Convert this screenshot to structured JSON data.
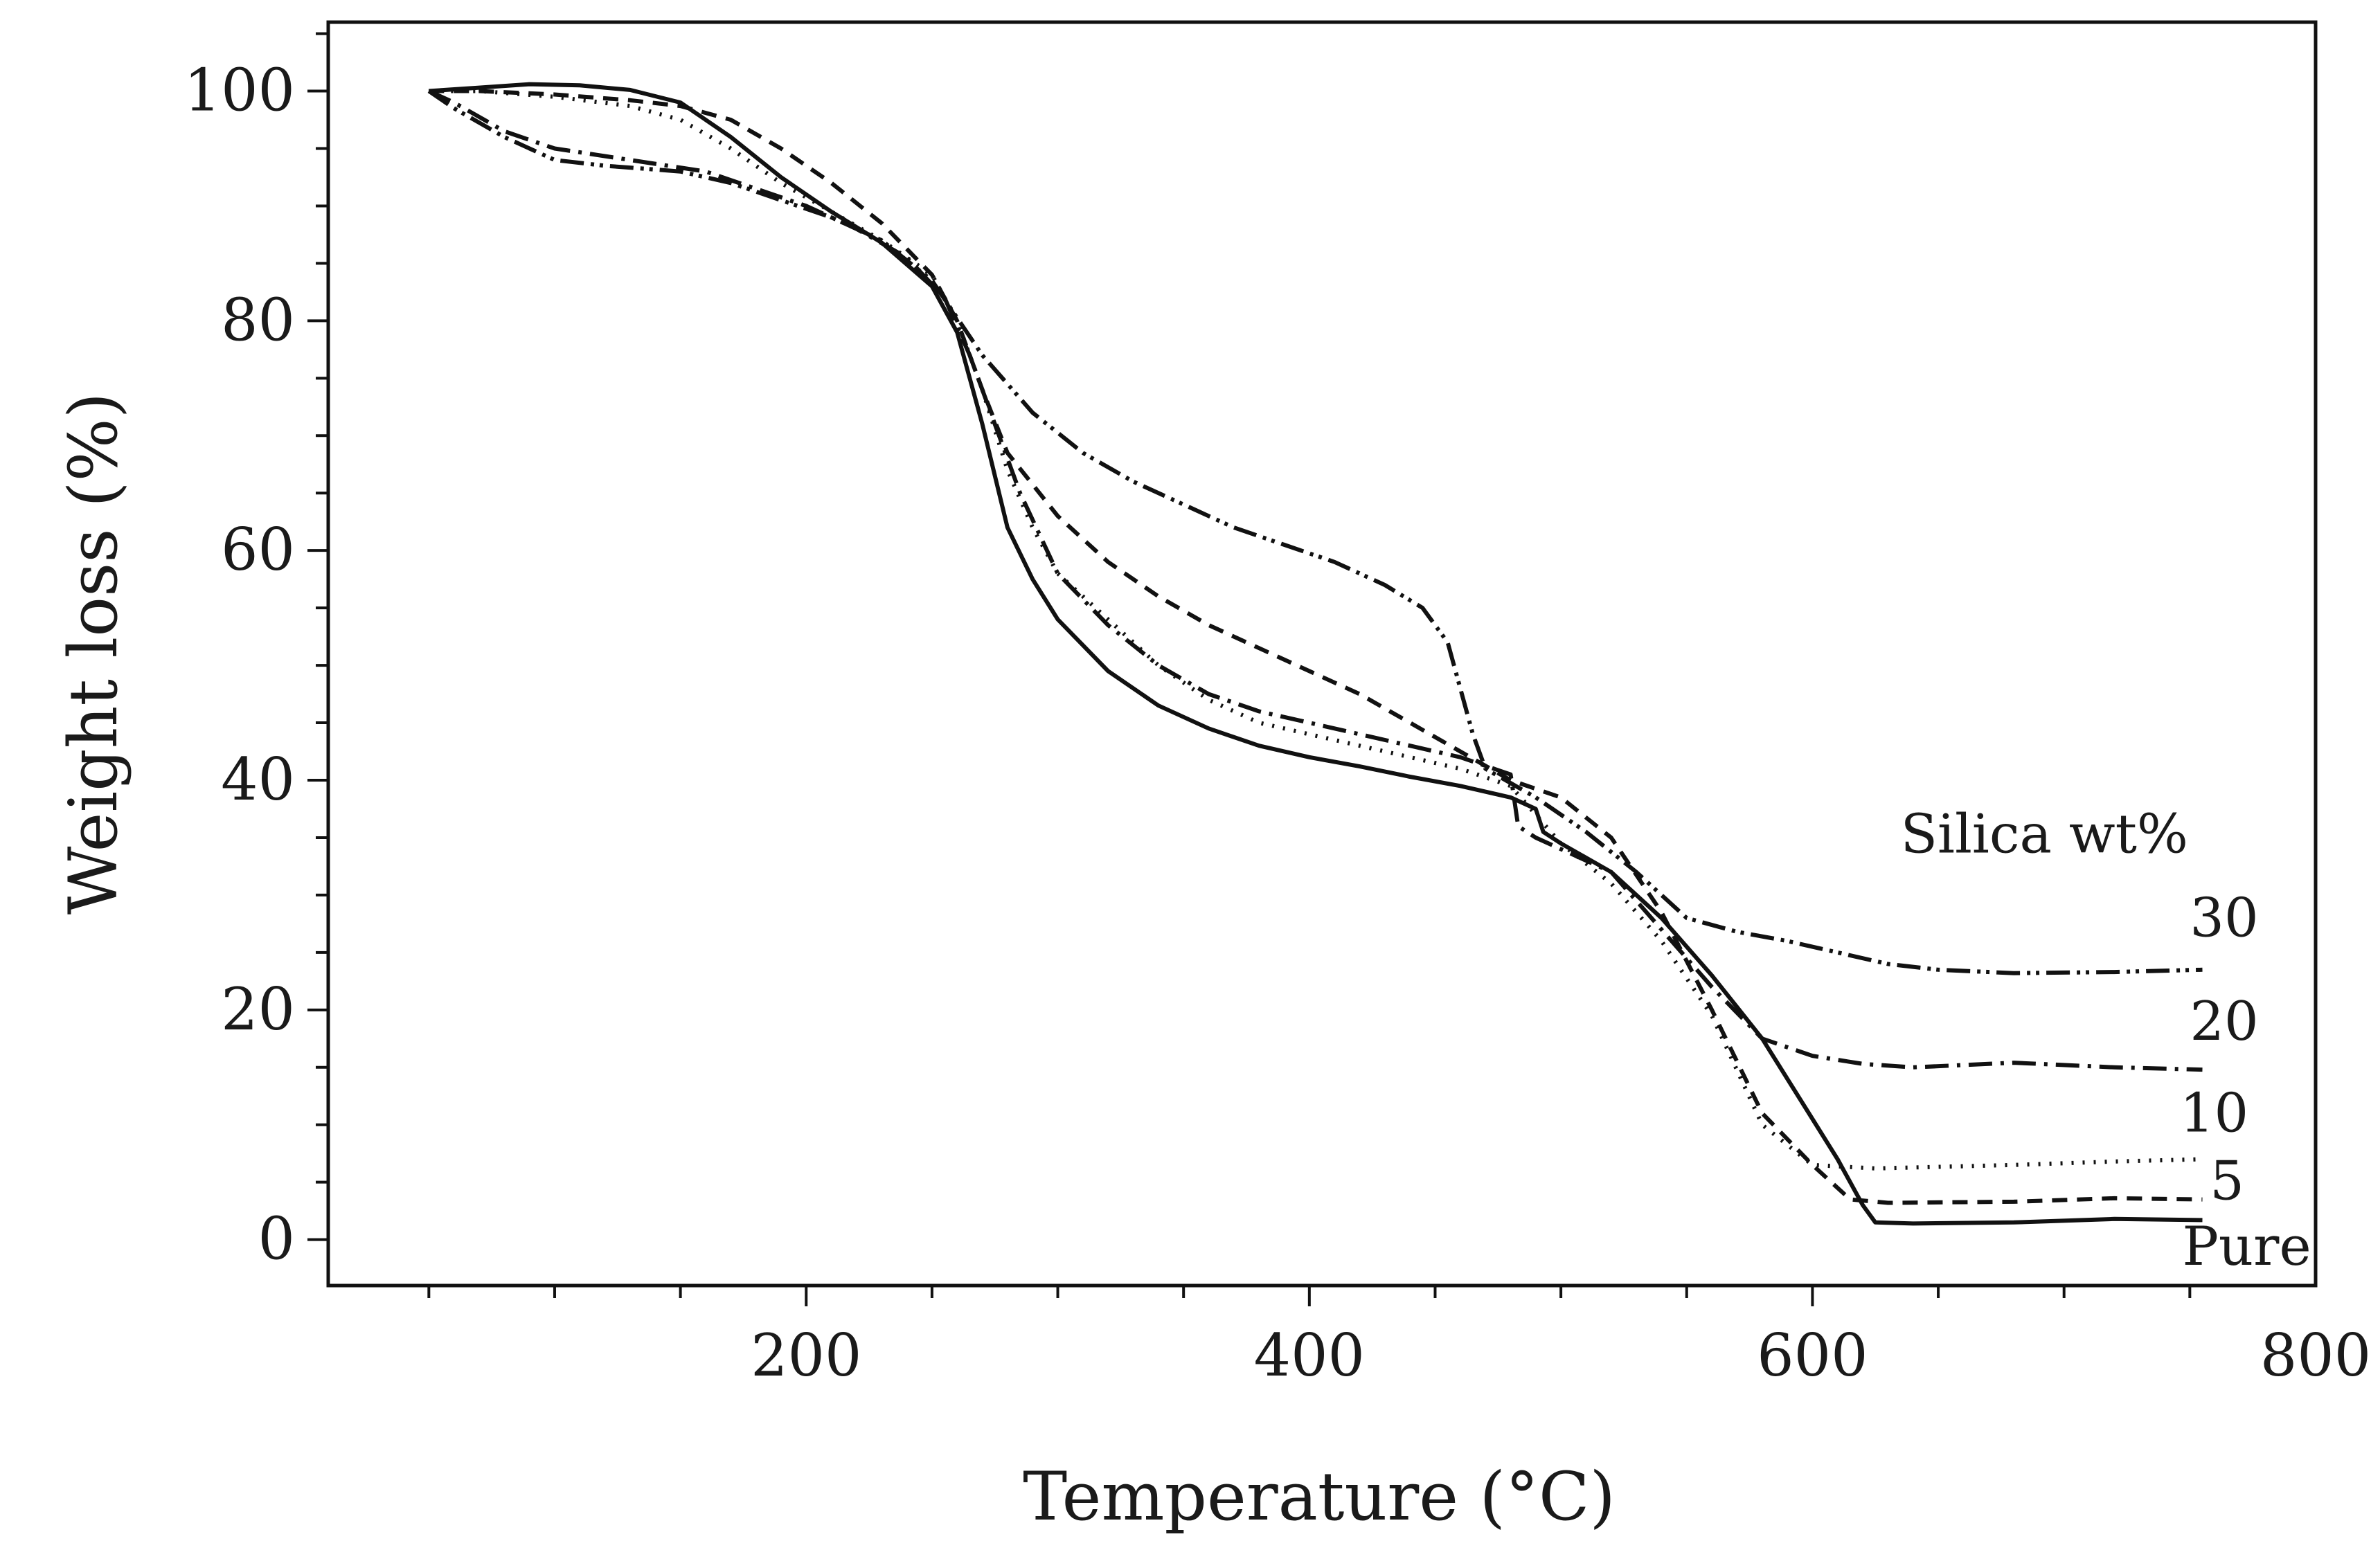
{
  "chart_data": {
    "type": "line",
    "title": "",
    "xlabel": "Temperature (°C)",
    "ylabel": "Weight loss (%)",
    "xlim": [
      10,
      800
    ],
    "ylim": [
      -4,
      106
    ],
    "xticks": [
      200,
      400,
      600,
      800
    ],
    "yticks": [
      0,
      20,
      40,
      60,
      80,
      100
    ],
    "x_minor_step": 50,
    "y_minor_step": 5,
    "grid": false,
    "legend_title": "Silica wt%",
    "series": [
      {
        "name": "Pure",
        "label": "Pure",
        "dash": "solid",
        "points": [
          [
            50,
            100
          ],
          [
            70,
            100.3
          ],
          [
            90,
            100.6
          ],
          [
            110,
            100.5
          ],
          [
            130,
            100.1
          ],
          [
            150,
            99
          ],
          [
            170,
            96
          ],
          [
            190,
            92.5
          ],
          [
            210,
            89.5
          ],
          [
            230,
            86.8
          ],
          [
            250,
            83
          ],
          [
            260,
            79
          ],
          [
            270,
            71
          ],
          [
            280,
            62
          ],
          [
            290,
            57.5
          ],
          [
            300,
            54
          ],
          [
            320,
            49.5
          ],
          [
            340,
            46.5
          ],
          [
            360,
            44.5
          ],
          [
            380,
            43
          ],
          [
            400,
            42
          ],
          [
            420,
            41.2
          ],
          [
            440,
            40.3
          ],
          [
            460,
            39.5
          ],
          [
            480,
            38.5
          ],
          [
            490,
            37.5
          ],
          [
            493,
            35.5
          ],
          [
            500,
            34.5
          ],
          [
            520,
            32
          ],
          [
            540,
            28
          ],
          [
            560,
            23
          ],
          [
            580,
            17.5
          ],
          [
            600,
            10.5
          ],
          [
            610,
            7
          ],
          [
            620,
            3
          ],
          [
            625,
            1.5
          ],
          [
            640,
            1.4
          ],
          [
            680,
            1.5
          ],
          [
            720,
            1.8
          ],
          [
            755,
            1.7
          ]
        ]
      },
      {
        "name": "5",
        "label": "5",
        "dash": "22 14",
        "points": [
          [
            50,
            100
          ],
          [
            70,
            100
          ],
          [
            100,
            99.7
          ],
          [
            130,
            99.2
          ],
          [
            150,
            98.7
          ],
          [
            170,
            97.5
          ],
          [
            190,
            95
          ],
          [
            210,
            92
          ],
          [
            230,
            88.5
          ],
          [
            250,
            84
          ],
          [
            260,
            80
          ],
          [
            270,
            74
          ],
          [
            280,
            68.5
          ],
          [
            300,
            63
          ],
          [
            320,
            59
          ],
          [
            340,
            56
          ],
          [
            360,
            53.5
          ],
          [
            380,
            51.5
          ],
          [
            400,
            49.5
          ],
          [
            420,
            47.5
          ],
          [
            440,
            45
          ],
          [
            460,
            42.5
          ],
          [
            480,
            40
          ],
          [
            500,
            38.5
          ],
          [
            520,
            35
          ],
          [
            540,
            28.5
          ],
          [
            560,
            20
          ],
          [
            580,
            11
          ],
          [
            600,
            6.5
          ],
          [
            615,
            3.5
          ],
          [
            630,
            3.2
          ],
          [
            680,
            3.3
          ],
          [
            720,
            3.6
          ],
          [
            755,
            3.5
          ]
        ]
      },
      {
        "name": "10",
        "label": "10",
        "dash": "3 13",
        "points": [
          [
            50,
            100
          ],
          [
            70,
            100
          ],
          [
            100,
            99.5
          ],
          [
            130,
            98.7
          ],
          [
            150,
            97.5
          ],
          [
            170,
            95
          ],
          [
            190,
            92
          ],
          [
            210,
            89.5
          ],
          [
            230,
            87
          ],
          [
            250,
            84
          ],
          [
            260,
            80
          ],
          [
            270,
            74
          ],
          [
            280,
            67
          ],
          [
            290,
            62
          ],
          [
            300,
            58
          ],
          [
            320,
            54
          ],
          [
            340,
            50
          ],
          [
            360,
            47
          ],
          [
            380,
            45
          ],
          [
            400,
            44
          ],
          [
            420,
            43
          ],
          [
            440,
            42
          ],
          [
            460,
            41
          ],
          [
            480,
            39.5
          ],
          [
            490,
            37
          ],
          [
            500,
            34.5
          ],
          [
            520,
            31
          ],
          [
            540,
            26
          ],
          [
            560,
            19.5
          ],
          [
            580,
            10
          ],
          [
            600,
            6.5
          ],
          [
            625,
            6.2
          ],
          [
            680,
            6.5
          ],
          [
            720,
            6.8
          ],
          [
            755,
            7
          ]
        ]
      },
      {
        "name": "20",
        "label": "20",
        "dash": "34 12 5 12",
        "points": [
          [
            50,
            100
          ],
          [
            60,
            99
          ],
          [
            80,
            96.5
          ],
          [
            100,
            95
          ],
          [
            130,
            94
          ],
          [
            160,
            93
          ],
          [
            180,
            91.5
          ],
          [
            200,
            90
          ],
          [
            220,
            88
          ],
          [
            240,
            85.5
          ],
          [
            255,
            82
          ],
          [
            265,
            77
          ],
          [
            275,
            71
          ],
          [
            285,
            65
          ],
          [
            300,
            58
          ],
          [
            320,
            53.5
          ],
          [
            340,
            50
          ],
          [
            360,
            47.5
          ],
          [
            380,
            46
          ],
          [
            400,
            45
          ],
          [
            420,
            44
          ],
          [
            440,
            43
          ],
          [
            460,
            42
          ],
          [
            480,
            40.5
          ],
          [
            483,
            36
          ],
          [
            490,
            35
          ],
          [
            500,
            34
          ],
          [
            520,
            32
          ],
          [
            540,
            27
          ],
          [
            560,
            22
          ],
          [
            580,
            17.5
          ],
          [
            600,
            16
          ],
          [
            620,
            15.3
          ],
          [
            640,
            15
          ],
          [
            680,
            15.4
          ],
          [
            720,
            15
          ],
          [
            755,
            14.8
          ]
        ]
      },
      {
        "name": "30",
        "label": "30",
        "dash": "34 10 5 8 5 10",
        "points": [
          [
            50,
            100
          ],
          [
            60,
            98.5
          ],
          [
            80,
            96
          ],
          [
            100,
            94
          ],
          [
            120,
            93.5
          ],
          [
            150,
            93
          ],
          [
            170,
            92
          ],
          [
            190,
            90.5
          ],
          [
            210,
            89
          ],
          [
            230,
            87
          ],
          [
            250,
            83.5
          ],
          [
            270,
            77
          ],
          [
            290,
            72
          ],
          [
            310,
            68.5
          ],
          [
            330,
            66
          ],
          [
            350,
            64
          ],
          [
            370,
            62
          ],
          [
            390,
            60.5
          ],
          [
            410,
            59
          ],
          [
            430,
            57
          ],
          [
            445,
            55
          ],
          [
            455,
            52
          ],
          [
            465,
            44
          ],
          [
            470,
            41
          ],
          [
            490,
            38.5
          ],
          [
            510,
            35.5
          ],
          [
            530,
            32
          ],
          [
            550,
            28
          ],
          [
            570,
            26.8
          ],
          [
            590,
            26
          ],
          [
            610,
            25
          ],
          [
            630,
            24
          ],
          [
            650,
            23.5
          ],
          [
            680,
            23.2
          ],
          [
            720,
            23.3
          ],
          [
            755,
            23.5
          ]
        ]
      }
    ],
    "annotations": [
      {
        "text": "Silica wt%",
        "x": 635,
        "y": 33.7
      },
      {
        "text": "30",
        "x": 750,
        "y": 26.4
      },
      {
        "text": "20",
        "x": 750,
        "y": 17.4
      },
      {
        "text": "10",
        "x": 746,
        "y": 9.4
      },
      {
        "text": "5",
        "x": 758,
        "y": 3.5
      },
      {
        "text": "Pure",
        "x": 747,
        "y": -2.2
      }
    ]
  }
}
